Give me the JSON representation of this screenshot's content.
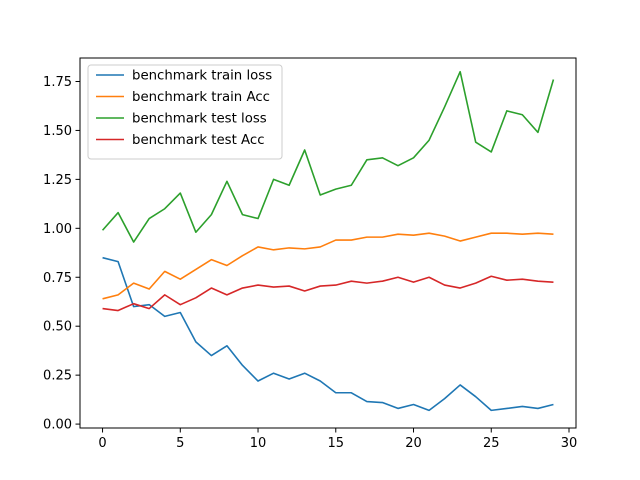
{
  "chart_data": {
    "type": "line",
    "title": "",
    "xlabel": "",
    "ylabel": "",
    "xlim": [
      -1.45,
      30.45
    ],
    "ylim": [
      -0.02,
      1.87
    ],
    "xticks": [
      0,
      5,
      10,
      15,
      20,
      25,
      30
    ],
    "xtick_labels": [
      "0",
      "5",
      "10",
      "15",
      "20",
      "25",
      "30"
    ],
    "yticks": [
      0.0,
      0.25,
      0.5,
      0.75,
      1.0,
      1.25,
      1.5,
      1.75
    ],
    "ytick_labels": [
      "0.00",
      "0.25",
      "0.50",
      "0.75",
      "1.00",
      "1.25",
      "1.50",
      "1.75"
    ],
    "grid": false,
    "legend_position": "top-left",
    "x": [
      0,
      1,
      2,
      3,
      4,
      5,
      6,
      7,
      8,
      9,
      10,
      11,
      12,
      13,
      14,
      15,
      16,
      17,
      18,
      19,
      20,
      21,
      22,
      23,
      24,
      25,
      26,
      27,
      28,
      29
    ],
    "series": [
      {
        "name": "benchmark train loss",
        "color": "#1f77b4",
        "values": [
          0.85,
          0.83,
          0.6,
          0.61,
          0.55,
          0.57,
          0.42,
          0.35,
          0.4,
          0.3,
          0.22,
          0.26,
          0.23,
          0.26,
          0.22,
          0.16,
          0.16,
          0.115,
          0.11,
          0.08,
          0.1,
          0.07,
          0.13,
          0.2,
          0.14,
          0.07,
          0.08,
          0.09,
          0.08,
          0.1
        ]
      },
      {
        "name": "benchmark train Acc",
        "color": "#ff7f0e",
        "values": [
          0.64,
          0.66,
          0.72,
          0.69,
          0.78,
          0.74,
          0.79,
          0.84,
          0.81,
          0.86,
          0.905,
          0.89,
          0.9,
          0.895,
          0.905,
          0.94,
          0.94,
          0.955,
          0.955,
          0.97,
          0.965,
          0.975,
          0.96,
          0.935,
          0.955,
          0.975,
          0.975,
          0.97,
          0.975,
          0.97
        ]
      },
      {
        "name": "benchmark test loss",
        "color": "#2ca02c",
        "values": [
          0.99,
          1.08,
          0.93,
          1.05,
          1.1,
          1.18,
          0.98,
          1.07,
          1.24,
          1.07,
          1.05,
          1.25,
          1.22,
          1.4,
          1.17,
          1.2,
          1.22,
          1.35,
          1.36,
          1.32,
          1.36,
          1.45,
          1.62,
          1.8,
          1.44,
          1.39,
          1.6,
          1.58,
          1.49,
          1.76
        ]
      },
      {
        "name": "benchmark test Acc",
        "color": "#d62728",
        "values": [
          0.59,
          0.58,
          0.615,
          0.59,
          0.66,
          0.61,
          0.645,
          0.695,
          0.66,
          0.695,
          0.71,
          0.7,
          0.705,
          0.68,
          0.705,
          0.71,
          0.73,
          0.72,
          0.73,
          0.75,
          0.725,
          0.75,
          0.71,
          0.695,
          0.72,
          0.755,
          0.735,
          0.74,
          0.73,
          0.725
        ]
      }
    ]
  }
}
